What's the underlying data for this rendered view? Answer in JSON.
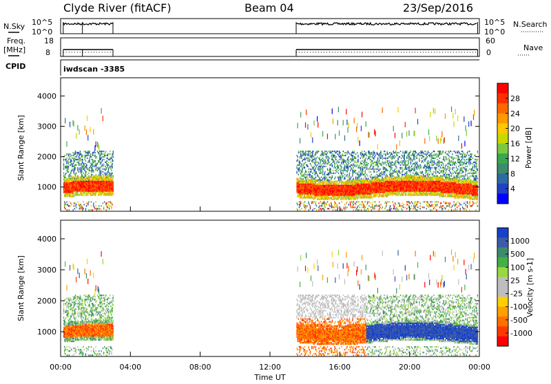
{
  "header": {
    "station": "Clyde River (fitACF)",
    "beam": "Beam 04",
    "date": "23/Sep/2016"
  },
  "strips": {
    "nsky": {
      "label": "N.Sky",
      "tick_top": "10^5",
      "tick_bottom": "10^0"
    },
    "nsearch": {
      "label": "N.Search",
      "tick_top": "10^5",
      "tick_bottom": "10^0"
    },
    "freq": {
      "label_line1": "Freq.",
      "label_line2": "[MHz]",
      "tick_top": "18",
      "tick_bottom": "8"
    },
    "nave": {
      "label": "Nave",
      "tick_top": "60",
      "tick_bottom": "0"
    },
    "cpid": {
      "label": "CPID",
      "value": "iwdscan  -3385"
    }
  },
  "chart_data": [
    {
      "type": "heatmap",
      "title": "",
      "xlabel": "",
      "ylabel": "Slant Range [km]",
      "colorbar_label": "Power [dB]",
      "colorbar_ticks": [
        "28",
        "24",
        "20",
        "16",
        "12",
        "8",
        "4"
      ],
      "colorbar_colors": [
        "#ff0000",
        "#ff3000",
        "#ff6800",
        "#ff9a00",
        "#ffc800",
        "#c8d800",
        "#7cc840",
        "#38a850",
        "#3c8c6c",
        "#2c6ca0",
        "#2040c8",
        "#0000ff"
      ],
      "ylim": [
        200,
        4600
      ],
      "y_ticks": [
        "1000",
        "2000",
        "3000",
        "4000"
      ],
      "xlim": [
        "00:00",
        "24:00"
      ],
      "data_gaps_ut": [
        [
          "03:00",
          "13:30"
        ]
      ],
      "band_center_km_power": 950
    },
    {
      "type": "heatmap",
      "title": "",
      "xlabel": "Time UT",
      "ylabel": "Slant Range [km]",
      "colorbar_label": "Velocity [m s-1]",
      "colorbar_ticks": [
        "1000",
        "500",
        "100",
        "25",
        "-25",
        "-100",
        "-500",
        "-1000"
      ],
      "colorbar_colors": [
        "#1840c8",
        "#3c5ca8",
        "#3c8c6c",
        "#44b044",
        "#98d840",
        "#bebebe",
        "#bebebe",
        "#ffd000",
        "#ffa000",
        "#ff7000",
        "#ff3800",
        "#ff0000"
      ],
      "ylim": [
        200,
        4600
      ],
      "y_ticks": [
        "1000",
        "2000",
        "3000",
        "4000"
      ],
      "x_ticks": [
        "00:00",
        "04:00",
        "08:00",
        "12:00",
        "16:00",
        "20:00",
        "00:00"
      ],
      "xlim": [
        "00:00",
        "24:00"
      ],
      "data_gaps_ut": [
        [
          "03:00",
          "13:30"
        ]
      ]
    }
  ]
}
